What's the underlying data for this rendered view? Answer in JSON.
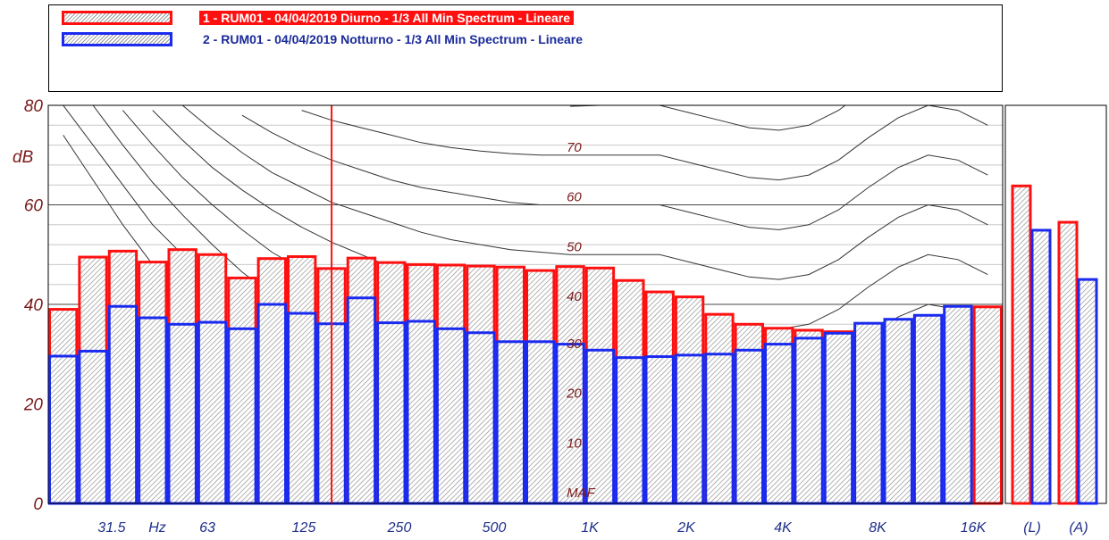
{
  "legend": [
    {
      "label": "1 - RUM01 - 04/04/2019 Diurno - 1/3 All Min Spectrum - Lineare",
      "color": "#ff1010"
    },
    {
      "label": "2 - RUM01 - 04/04/2019 Notturno - 1/3 All Min Spectrum - Lineare",
      "color": "#1a2aee"
    }
  ],
  "chart_data": {
    "type": "bar",
    "ylabel": "dB",
    "ylim": [
      0,
      80
    ],
    "yticks": [
      0,
      20,
      40,
      60,
      80
    ],
    "x_tick_labels": [
      "31.5",
      "Hz",
      "63",
      "125",
      "250",
      "500",
      "1K",
      "2K",
      "4K",
      "8K",
      "16K",
      "(L)",
      "(A)"
    ],
    "categories": [
      "16",
      "20",
      "25",
      "31.5",
      "40",
      "50",
      "63",
      "80",
      "100",
      "125",
      "160",
      "200",
      "250",
      "315",
      "400",
      "500",
      "630",
      "800",
      "1K",
      "1.25K",
      "1.6K",
      "2K",
      "2.5K",
      "3.15K",
      "4K",
      "5K",
      "6.3K",
      "8K",
      "10K",
      "12.5K",
      "16K",
      "20K"
    ],
    "series": [
      {
        "name": "1 - RUM01 - 04/04/2019 Diurno - 1/3 All Min Spectrum - Lineare",
        "color": "#ff1010",
        "values": [
          39,
          49.5,
          50.7,
          48.5,
          51,
          50,
          45.3,
          49.2,
          49.6,
          47.2,
          49.3,
          48.4,
          48,
          47.9,
          47.7,
          47.5,
          46.8,
          47.6,
          47.3,
          44.8,
          42.5,
          41.5,
          38,
          36,
          35.2,
          34.8,
          34.5,
          35,
          36.5,
          37.5,
          38,
          39.5
        ],
        "totals": {
          "L": 63.8,
          "A": 56.5
        }
      },
      {
        "name": "2 - RUM01 - 04/04/2019 Notturno - 1/3 All Min Spectrum - Lineare",
        "color": "#1a2aee",
        "values": [
          29.6,
          30.6,
          39.6,
          37.3,
          36,
          36.4,
          35.1,
          40,
          38.2,
          36.1,
          41.3,
          36.3,
          36.6,
          35.1,
          34.3,
          32.5,
          32.5,
          32,
          30.8,
          29.3,
          29.5,
          29.8,
          30,
          30.8,
          32,
          33.2,
          34.2,
          36.2,
          37,
          37.8,
          39.6,
          0
        ],
        "totals": {
          "L": 54.9,
          "A": 45
        }
      }
    ],
    "annotations": {
      "marker_frequency": "125",
      "iso_curves": [
        {
          "label": "MAF",
          "values": [
            74,
            65,
            56,
            48,
            41,
            34.5,
            29,
            24,
            19.5,
            16,
            12.5,
            9.5,
            7,
            5,
            3.5,
            2,
            1,
            0.5,
            0.2,
            0.2,
            0.2,
            -1,
            -2.5,
            -4,
            -4.5,
            -3,
            0,
            4,
            8,
            11,
            10,
            6
          ]
        },
        {
          "label": "10",
          "values": [
            80,
            72,
            64,
            56,
            50,
            44,
            38.5,
            33.5,
            29.5,
            25.5,
            22.5,
            19.5,
            17,
            15,
            13.5,
            12,
            11,
            10.5,
            10,
            10,
            10,
            8.5,
            7,
            5.5,
            5,
            6,
            9,
            13.5,
            17.5,
            20,
            19,
            15
          ]
        },
        {
          "label": "20",
          "values": [
            null,
            80,
            72,
            64.5,
            58,
            52,
            46.5,
            42,
            38,
            34.5,
            31.5,
            29,
            26.5,
            25,
            23.5,
            22,
            21,
            20.5,
            20,
            20,
            20,
            18.5,
            17,
            15.5,
            15,
            16,
            19,
            23.5,
            27.5,
            30,
            29,
            26
          ]
        },
        {
          "label": "30",
          "values": [
            null,
            null,
            79,
            72,
            65.5,
            60,
            55,
            50.5,
            47,
            43.5,
            41,
            38.5,
            36.5,
            35,
            33.5,
            32,
            31,
            30.5,
            30,
            30,
            30,
            28.5,
            27,
            25.5,
            25,
            26,
            29,
            33.5,
            37.5,
            40,
            39,
            36
          ]
        },
        {
          "label": "40",
          "values": [
            null,
            null,
            null,
            79,
            73,
            67.5,
            63,
            59,
            55.5,
            52.5,
            50,
            47.5,
            45.5,
            44,
            42.5,
            41.5,
            40.5,
            40,
            40,
            40,
            40,
            38.5,
            37,
            35.5,
            35,
            36,
            39,
            43.5,
            47.5,
            50,
            49,
            46
          ]
        },
        {
          "label": "50",
          "values": [
            null,
            null,
            null,
            null,
            80,
            75,
            70.5,
            66.5,
            63.5,
            60.5,
            58.5,
            56.5,
            54.5,
            53,
            52,
            51,
            50.5,
            50,
            50,
            50,
            50,
            48.5,
            47,
            45.5,
            45,
            46,
            49,
            53.5,
            57.5,
            60,
            59,
            56
          ]
        },
        {
          "label": "60",
          "values": [
            null,
            null,
            null,
            null,
            null,
            null,
            78,
            74.5,
            71.5,
            69,
            67,
            65,
            63.5,
            62.5,
            61.5,
            60.5,
            60,
            60,
            60,
            60,
            60,
            58.5,
            57,
            55.5,
            55,
            56,
            59,
            63.5,
            67.5,
            70,
            69,
            66
          ]
        },
        {
          "label": "70",
          "values": [
            null,
            null,
            null,
            null,
            null,
            null,
            null,
            null,
            79,
            77,
            75.5,
            74,
            72.5,
            71.5,
            70.8,
            70.3,
            70,
            70,
            70,
            70,
            70,
            68.5,
            67,
            65.5,
            65,
            66,
            69,
            73.5,
            77.5,
            80,
            79,
            76
          ]
        },
        {
          "label": "",
          "values": [
            null,
            null,
            null,
            null,
            null,
            null,
            null,
            null,
            null,
            null,
            null,
            null,
            null,
            null,
            null,
            null,
            null,
            79.8,
            80,
            80,
            80,
            78.5,
            77,
            75.5,
            75,
            76,
            79,
            83.5,
            87.5,
            90,
            89,
            86
          ]
        }
      ]
    }
  }
}
